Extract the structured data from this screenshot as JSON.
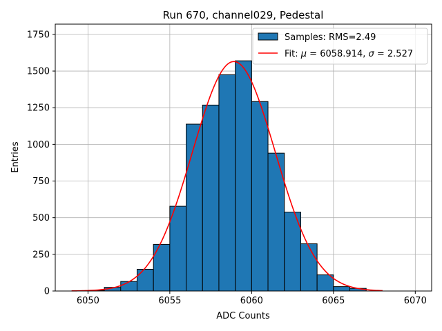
{
  "chart_data": {
    "type": "bar",
    "title": "Run 670, channel029, Pedestal",
    "xlabel": "ADC Counts",
    "ylabel": "Entries",
    "xlim": [
      6048,
      6071
    ],
    "ylim": [
      0,
      1820
    ],
    "xticks": [
      6050,
      6055,
      6060,
      6065,
      6070
    ],
    "yticks": [
      0,
      250,
      500,
      750,
      1000,
      1250,
      1500,
      1750
    ],
    "ytick_labels": [
      "0",
      "250",
      "500",
      "750",
      "1000",
      "1250",
      "1500",
      "1750"
    ],
    "grid": true,
    "legend_position": "top-right",
    "bin_width": 1,
    "series": [
      {
        "name": "Samples: RMS=2.49",
        "kind": "histogram",
        "color": "#1f77b4",
        "bin_lefts": [
          6050,
          6051,
          6052,
          6053,
          6054,
          6055,
          6056,
          6057,
          6058,
          6059,
          6060,
          6061,
          6062,
          6063,
          6064,
          6065,
          6066
        ],
        "values": [
          5,
          25,
          65,
          148,
          318,
          578,
          1138,
          1268,
          1475,
          1570,
          1292,
          940,
          538,
          322,
          110,
          30,
          18
        ]
      },
      {
        "name_prefix": "Fit: ",
        "name_mu": "μ",
        "name_mid": " = 6058.914, ",
        "name_sigma": "σ",
        "name_suffix": " = 2.527",
        "kind": "gaussian",
        "color": "#ff0000",
        "mu": 6058.914,
        "sigma": 2.527,
        "amplitude": 1565,
        "x_range": [
          6049,
          6068
        ]
      }
    ]
  }
}
